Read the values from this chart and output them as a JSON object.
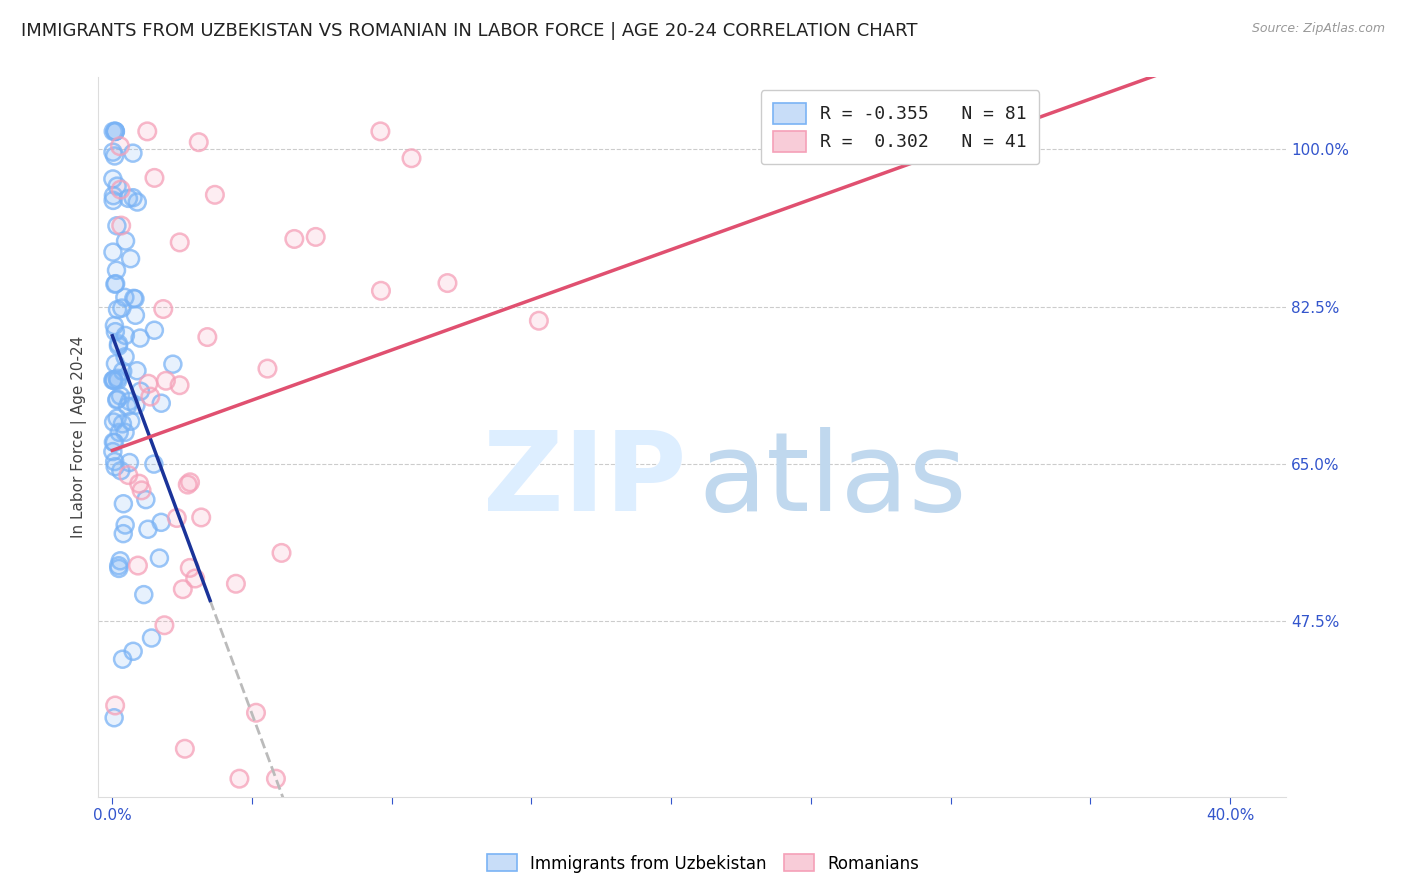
{
  "title": "IMMIGRANTS FROM UZBEKISTAN VS ROMANIAN IN LABOR FORCE | AGE 20-24 CORRELATION CHART",
  "source": "Source: ZipAtlas.com",
  "ylabel": "In Labor Force | Age 20-24",
  "ytick_labels": [
    "100.0%",
    "82.5%",
    "65.0%",
    "47.5%"
  ],
  "ytick_values": [
    1.0,
    0.825,
    0.65,
    0.475
  ],
  "ymin": 0.28,
  "ymax": 1.08,
  "xmin": -0.005,
  "xmax": 0.42,
  "uz_color": "#7ab3f5",
  "ro_color": "#f5a0b8",
  "uz_line_color": "#1a3399",
  "ro_line_color": "#e05070",
  "dashed_color": "#bbbbbb",
  "title_fontsize": 13,
  "axis_label_fontsize": 11,
  "tick_fontsize": 11,
  "background_color": "#ffffff",
  "grid_color": "#cccccc",
  "watermark_zip_color": "#ddeeff",
  "watermark_atlas_color": "#c0d8ee"
}
